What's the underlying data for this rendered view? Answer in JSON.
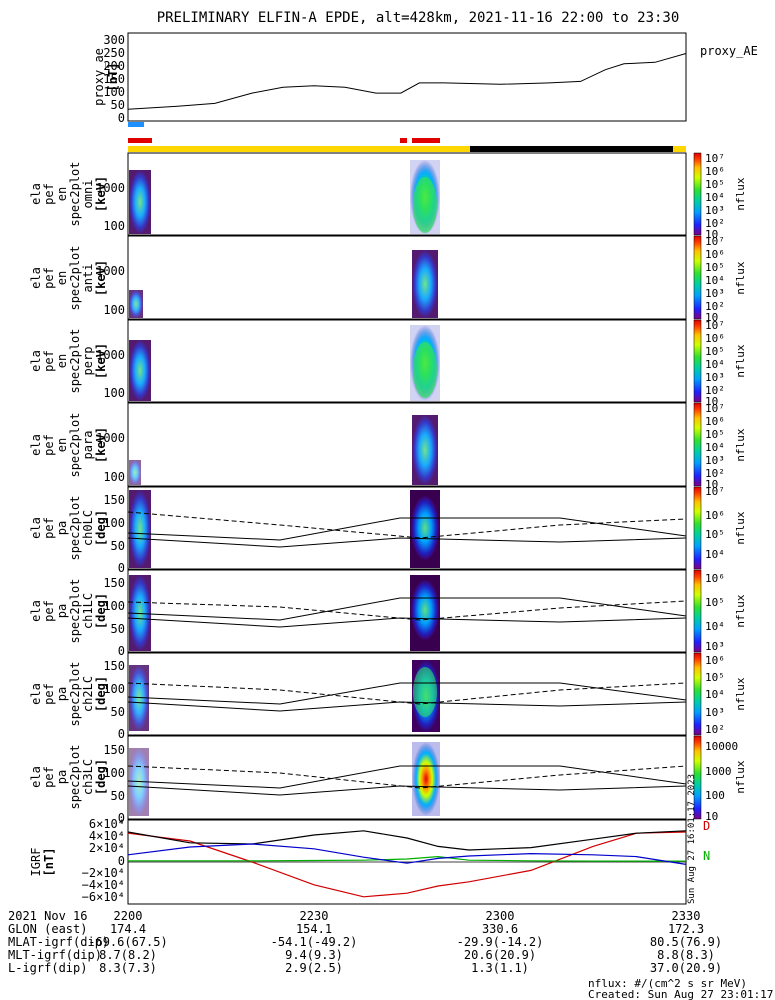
{
  "title": "PRELIMINARY ELFIN-A EPDE, alt=428km, 2021-11-16 22:00 to 23:30",
  "legend_proxy": "proxy_AE",
  "axis_labels": {
    "proxy": [
      "proxy_ae",
      "[nT]"
    ],
    "spec_omni": [
      "ela",
      "pef",
      "en",
      "spec2plot",
      "omni",
      "[keV]"
    ],
    "spec_anti": [
      "ela",
      "pef",
      "en",
      "spec2plot",
      "anti",
      "[keV]"
    ],
    "spec_perp": [
      "ela",
      "pef",
      "en",
      "spec2plot",
      "perp",
      "[keV]"
    ],
    "spec_para": [
      "ela",
      "pef",
      "en",
      "spec2plot",
      "para",
      "[keV]"
    ],
    "pa_ch0": [
      "ela",
      "pef",
      "pa",
      "spec2plot",
      "ch0LC",
      "[deg]"
    ],
    "pa_ch1": [
      "ela",
      "pef",
      "pa",
      "spec2plot",
      "ch1LC",
      "[deg]"
    ],
    "pa_ch2": [
      "ela",
      "pef",
      "pa",
      "spec2plot",
      "ch2LC",
      "[deg]"
    ],
    "pa_ch3": [
      "ela",
      "pef",
      "pa",
      "spec2plot",
      "ch3LC",
      "[deg]"
    ],
    "igrf": [
      "IGRF",
      "[nT]"
    ]
  },
  "ticks": {
    "proxy": [
      "300",
      "250",
      "200",
      "150",
      "100",
      "50",
      "0"
    ],
    "energy": [
      "1000",
      "100"
    ],
    "pitch": [
      "150",
      "100",
      "50",
      "0"
    ],
    "igrf": [
      "6×10⁴",
      "4×10⁴",
      "2×10⁴",
      "0",
      "−2×10⁴",
      "−4×10⁴",
      "−6×10⁴"
    ],
    "time": [
      "2200",
      "2230",
      "2300",
      "2330"
    ]
  },
  "colorbars": {
    "cb1": [
      "10⁷",
      "10⁶",
      "10⁵",
      "10⁴",
      "10³",
      "10²",
      "10"
    ],
    "cb2": [
      "10⁷",
      "10⁶",
      "10⁵",
      "10⁴",
      "10³",
      "10²",
      "10"
    ],
    "cb3": [
      "10⁷",
      "10⁶",
      "10⁵",
      "10⁴",
      "10³",
      "10²",
      "10"
    ],
    "cb4": [
      "10⁷",
      "10⁶",
      "10⁵",
      "10⁴",
      "10³",
      "10²",
      "10"
    ],
    "cb5": [
      "10⁷",
      "10⁶",
      "10⁵",
      "10⁴"
    ],
    "cb6": [
      "10⁶",
      "10⁵",
      "10⁴",
      "10³"
    ],
    "cb7": [
      "10⁶",
      "10⁵",
      "10⁴",
      "10³",
      "10²"
    ],
    "cb8": [
      "10000",
      "1000",
      "100",
      "10"
    ],
    "unit": "nflux"
  },
  "igrf_legend": [
    "D",
    "N"
  ],
  "footer": {
    "rows": [
      {
        "label": "2021 Nov 16",
        "values": [
          "2200",
          "2230",
          "2300",
          "2330"
        ]
      },
      {
        "label": "GLON (east)",
        "values": [
          "174.4",
          "154.1",
          "330.6",
          "172.3"
        ]
      },
      {
        "label": "MLAT-igrf(dip)",
        "values": [
          "-69.6(67.5)",
          "-54.1(-49.2)",
          "-29.9(-14.2)",
          "80.5(76.9)"
        ]
      },
      {
        "label": "MLT-igrf(dip)",
        "values": [
          "8.7(8.2)",
          "9.4(9.3)",
          "20.6(20.9)",
          "8.8(8.3)"
        ]
      },
      {
        "label": "L-igrf(dip)",
        "values": [
          "8.3(7.3)",
          "2.9(2.5)",
          "1.3(1.1)",
          "37.0(20.9)"
        ]
      }
    ],
    "nflux_note": "nflux: #/(cm^2 s sr MeV)",
    "created": "Created: Sun Aug 27 23:01:17 2023",
    "side_stamp": "Sun Aug 27 16:01:17 2023"
  },
  "chart_data": {
    "type": "line",
    "title": "PRELIMINARY ELFIN-A EPDE, alt=428km, 2021-11-16 22:00 to 23:30",
    "x_unit": "time (HHMM UT)",
    "xlim": [
      "2200",
      "2330"
    ],
    "proxy_ae": {
      "ylabel": "proxy_ae [nT]",
      "ylim": [
        0,
        300
      ],
      "x_min": [
        0,
        8,
        14,
        20,
        25,
        30,
        35,
        40,
        44,
        47,
        51,
        60,
        68,
        73,
        77,
        80,
        85,
        90
      ],
      "values": [
        40,
        50,
        60,
        95,
        115,
        120,
        115,
        95,
        95,
        130,
        130,
        125,
        130,
        135,
        175,
        195,
        200,
        230
      ]
    },
    "spectrogram_panels": [
      "omni",
      "anti",
      "perp",
      "para"
    ],
    "energy_ylim_keV": [
      60,
      5000
    ],
    "pitch_angle_panels": [
      "ch0LC",
      "ch1LC",
      "ch2LC",
      "ch3LC"
    ],
    "pitch_ylim_deg": [
      0,
      180
    ],
    "colorbar_unit": "nflux",
    "igrf": {
      "ylabel": "IGRF [nT]",
      "ylim": [
        -70000,
        70000
      ],
      "x_min": [
        0,
        10,
        20,
        30,
        38,
        45,
        50,
        55,
        65,
        75,
        82,
        90
      ],
      "series": [
        {
          "name": "D",
          "color": "#d00000",
          "values": [
            48000,
            35000,
            0,
            -38000,
            -58000,
            -52000,
            -40000,
            -33000,
            -14000,
            26000,
            48000,
            50000
          ]
        },
        {
          "name": "N",
          "color": "#00b000",
          "values": [
            2000,
            2000,
            2000,
            2500,
            3000,
            5000,
            9000,
            3000,
            2000,
            1500,
            1500,
            1500
          ]
        },
        {
          "name": "",
          "color": "#000000",
          "values": [
            50000,
            32000,
            30000,
            45000,
            52000,
            40000,
            26000,
            20000,
            24000,
            38000,
            48000,
            52000
          ]
        },
        {
          "name": "",
          "color": "#0000cc",
          "values": [
            12000,
            25000,
            30000,
            22000,
            8000,
            -2000,
            6000,
            10000,
            14000,
            12000,
            9000,
            -4000
          ]
        }
      ]
    }
  }
}
